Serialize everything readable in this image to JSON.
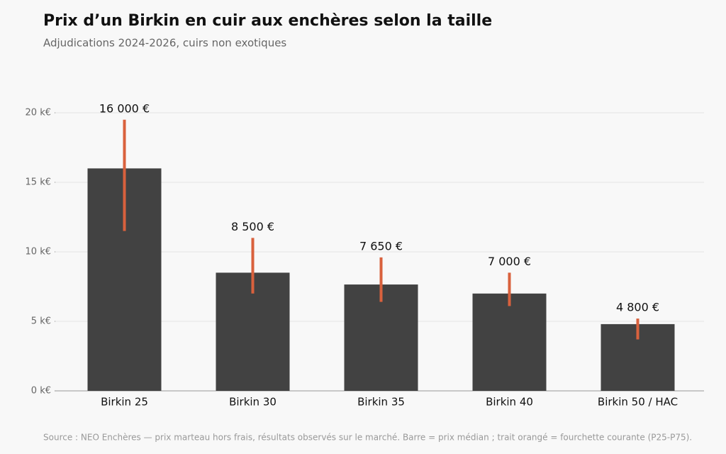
{
  "chart_data": {
    "type": "bar",
    "title": "Prix d’un Birkin en cuir aux enchères selon la taille",
    "subtitle": "Adjudications 2024-2026, cuirs non exotiques",
    "source": "Source : NEO Enchères — prix marteau hors frais, résultats observés sur le marché. Barre = prix médian ; trait orangé = fourchette courante (P25-P75).",
    "categories": [
      "Birkin 25",
      "Birkin 30",
      "Birkin 35",
      "Birkin 40",
      "Birkin 50 / HAC"
    ],
    "values": [
      16000,
      8500,
      7650,
      7000,
      4800
    ],
    "value_labels": [
      "16 000 €",
      "8 500 €",
      "7 650 €",
      "7 000 €",
      "4 800 €"
    ],
    "low": [
      11500,
      7000,
      6400,
      6100,
      3700
    ],
    "high": [
      19500,
      11000,
      9600,
      8500,
      5200
    ],
    "color": "#424242",
    "range_color": "#d9613d",
    "ylim": [
      0,
      20000
    ],
    "yticks": [
      {
        "value": 0,
        "label": "0 k€"
      },
      {
        "value": 5000,
        "label": "5 k€"
      },
      {
        "value": 10000,
        "label": "10 k€"
      },
      {
        "value": 15000,
        "label": "15 k€"
      },
      {
        "value": 20000,
        "label": "20 k€"
      }
    ],
    "grid": true
  }
}
